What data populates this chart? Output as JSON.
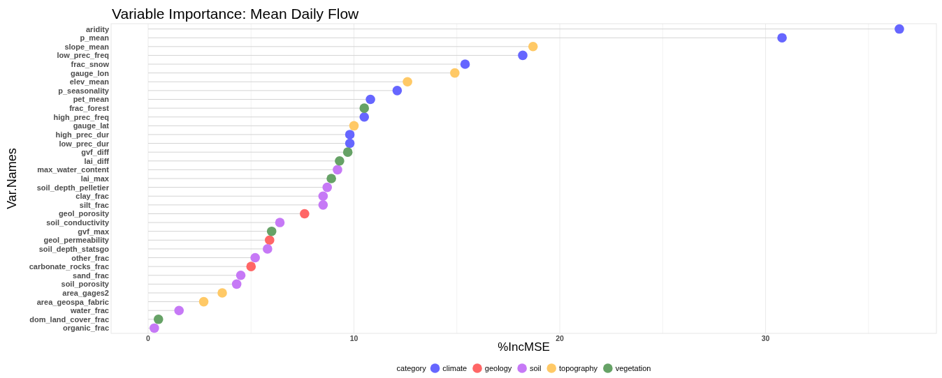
{
  "chart_data": {
    "type": "lollipop",
    "orientation": "horizontal",
    "title": "Variable Importance: Mean Daily Flow",
    "xlabel": "%IncMSE",
    "ylabel": "Var.Names",
    "legend_title": "category",
    "legend": "bottom",
    "grid": "x",
    "marker": "circle",
    "categories": [
      "aridity",
      "p_mean",
      "slope_mean",
      "low_prec_freq",
      "frac_snow",
      "gauge_lon",
      "elev_mean",
      "p_seasonality",
      "pet_mean",
      "frac_forest",
      "high_prec_freq",
      "gauge_lat",
      "high_prec_dur",
      "low_prec_dur",
      "gvf_diff",
      "lai_diff",
      "max_water_content",
      "lai_max",
      "soil_depth_pelletier",
      "clay_frac",
      "silt_frac",
      "geol_porosity",
      "soil_conductivity",
      "gvf_max",
      "geol_permeability",
      "soil_depth_statsgo",
      "other_frac",
      "carbonate_rocks_frac",
      "sand_frac",
      "soil_porosity",
      "area_gages2",
      "area_geospa_fabric",
      "water_frac",
      "dom_land_cover_frac",
      "organic_frac"
    ],
    "xlim": [
      -1.8,
      38.3
    ],
    "xticks": [
      0,
      {
        "value": 5,
        "label": null
      },
      10,
      {
        "value": 15,
        "label": null
      },
      20,
      {
        "value": 25,
        "label": null
      },
      30,
      {
        "value": 35,
        "label": null
      }
    ],
    "series": [
      {
        "name": "climate",
        "color": "#6666ff",
        "values": [
          36.5,
          30.8,
          null,
          18.2,
          15.4,
          null,
          null,
          12.1,
          10.8,
          null,
          10.5,
          null,
          9.8,
          9.8,
          null,
          null,
          null,
          null,
          null,
          null,
          null,
          null,
          null,
          null,
          null,
          null,
          null,
          null,
          null,
          null,
          null,
          null,
          null,
          null,
          null
        ]
      },
      {
        "name": "geology",
        "color": "#ff6666",
        "values": [
          null,
          null,
          null,
          null,
          null,
          null,
          null,
          null,
          null,
          null,
          null,
          null,
          null,
          null,
          null,
          null,
          null,
          null,
          null,
          null,
          null,
          7.6,
          null,
          null,
          5.9,
          null,
          null,
          5.0,
          null,
          null,
          null,
          null,
          null,
          null,
          null
        ]
      },
      {
        "name": "soil",
        "color": "#c679f6",
        "values": [
          null,
          null,
          null,
          null,
          null,
          null,
          null,
          null,
          null,
          null,
          null,
          null,
          null,
          null,
          null,
          null,
          9.2,
          null,
          8.7,
          8.5,
          8.5,
          null,
          6.4,
          null,
          null,
          5.8,
          5.2,
          null,
          4.5,
          4.3,
          null,
          null,
          1.5,
          null,
          0.3
        ]
      },
      {
        "name": "topography",
        "color": "#ffc966",
        "values": [
          null,
          null,
          18.7,
          null,
          null,
          14.9,
          12.6,
          null,
          null,
          null,
          null,
          10.0,
          null,
          null,
          null,
          null,
          null,
          null,
          null,
          null,
          null,
          null,
          null,
          null,
          null,
          null,
          null,
          null,
          null,
          null,
          3.6,
          2.7,
          null,
          null,
          null
        ]
      },
      {
        "name": "vegetation",
        "color": "#66a266",
        "values": [
          null,
          null,
          null,
          null,
          null,
          null,
          null,
          null,
          null,
          10.5,
          null,
          null,
          null,
          null,
          9.7,
          9.3,
          null,
          8.9,
          null,
          null,
          null,
          null,
          null,
          6.0,
          null,
          null,
          null,
          null,
          null,
          null,
          null,
          null,
          null,
          0.5,
          null
        ]
      }
    ]
  }
}
